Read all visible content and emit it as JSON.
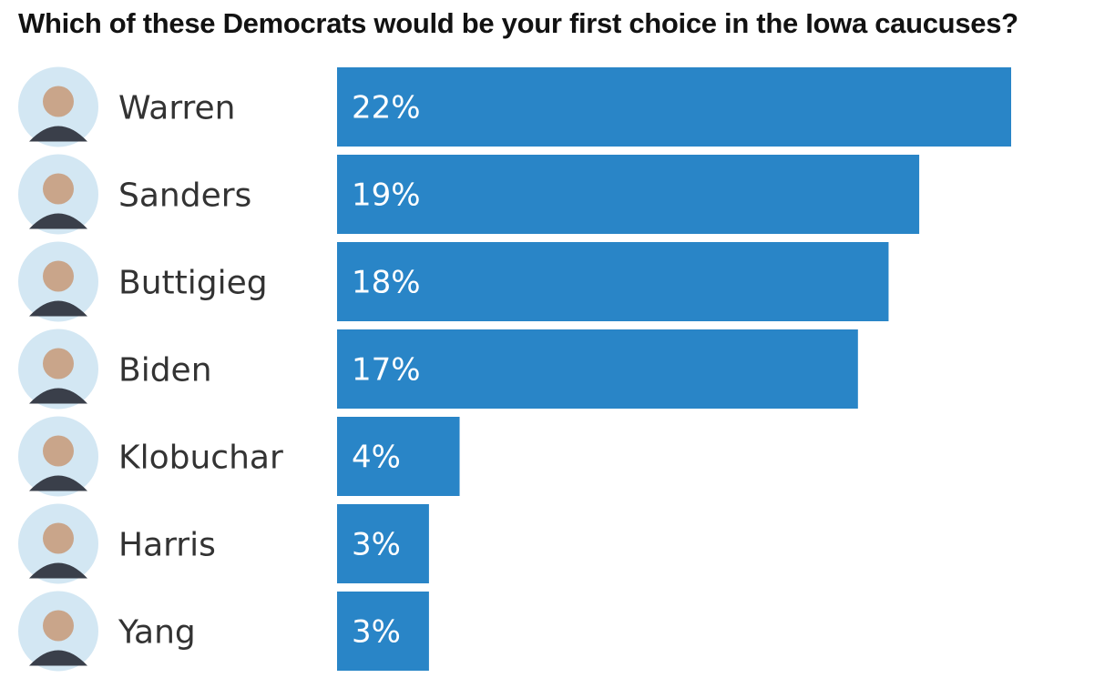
{
  "chart_data": {
    "type": "bar",
    "orientation": "horizontal",
    "title": "Which of these Democrats would be your first choice in the Iowa caucuses?",
    "categories": [
      "Warren",
      "Sanders",
      "Buttigieg",
      "Biden",
      "Klobuchar",
      "Harris",
      "Yang"
    ],
    "values": [
      22,
      19,
      18,
      17,
      4,
      3,
      3
    ],
    "value_labels": [
      "22%",
      "19%",
      "18%",
      "17%",
      "4%",
      "3%",
      "3%"
    ],
    "unit": "%",
    "xlim": [
      0,
      22
    ],
    "xlabel": "",
    "ylabel": "",
    "grid": false,
    "legend": "none"
  },
  "colors": {
    "bar": "#2985c7",
    "avatar_bg": "#d3e7f3",
    "label_text": "#333333",
    "value_text": "#ffffff"
  },
  "icons": [
    "warren-avatar-icon",
    "sanders-avatar-icon",
    "buttigieg-avatar-icon",
    "biden-avatar-icon",
    "klobuchar-avatar-icon",
    "harris-avatar-icon",
    "yang-avatar-icon"
  ]
}
